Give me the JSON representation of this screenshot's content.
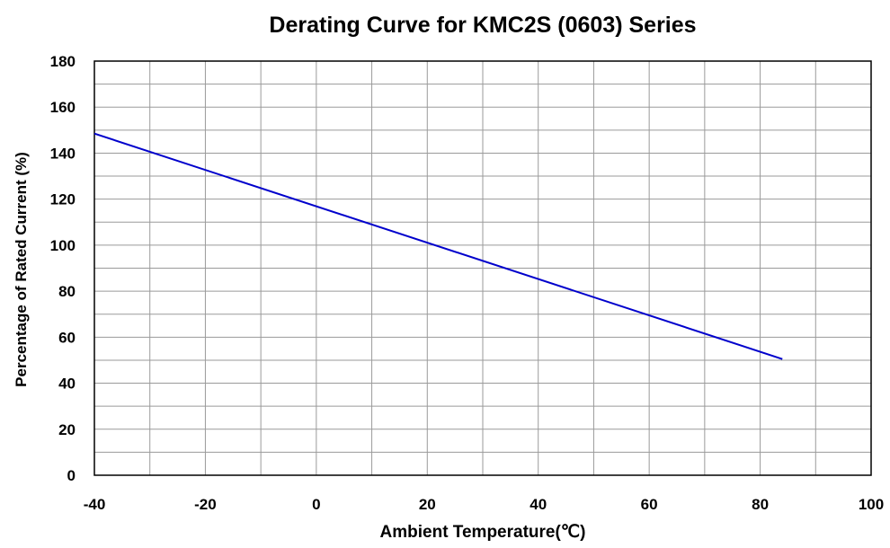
{
  "chart_data": {
    "type": "line",
    "title": "Derating Curve for KMC2S (0603) Series",
    "xlabel": "Ambient Temperature(℃)",
    "ylabel": "Percentage of Rated Current (%)",
    "xlim": [
      -40,
      100
    ],
    "ylim": [
      0,
      180
    ],
    "x_ticks": [
      "-40",
      "-20",
      "0",
      "20",
      "40",
      "60",
      "80",
      "100"
    ],
    "y_ticks": [
      "0",
      "20",
      "40",
      "60",
      "80",
      "100",
      "120",
      "140",
      "160",
      "180"
    ],
    "grid": true,
    "x_grid_step": 10,
    "y_grid_step": 10,
    "line_color": "#0000cc",
    "series": [
      {
        "x": [
          -40,
          84
        ],
        "y": [
          148.5,
          50.5
        ]
      }
    ]
  }
}
